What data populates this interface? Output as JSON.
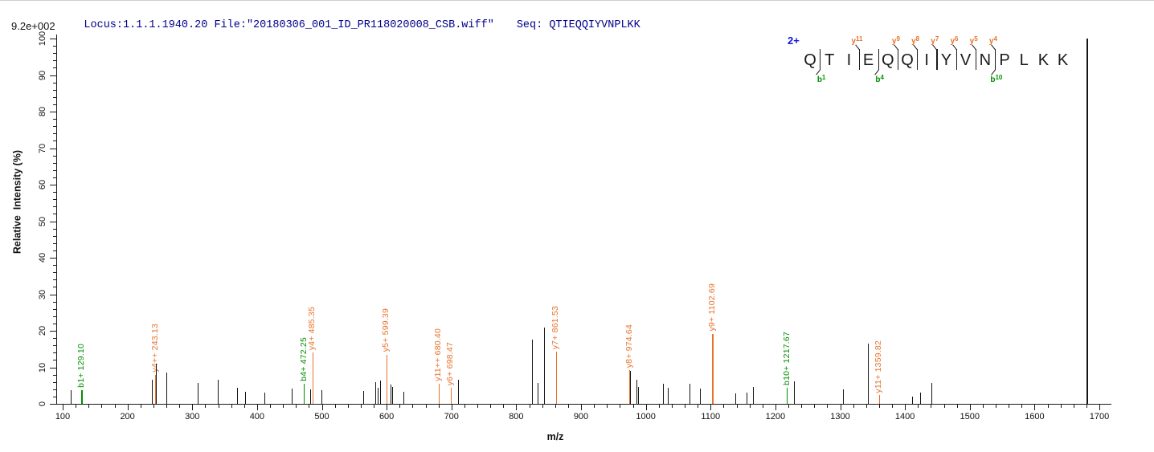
{
  "header": {
    "locus": "Locus:1.1.1.1940.20",
    "file": "File:\"20180306_001_ID_PR118020008_CSB.wiff\"",
    "seq_label": "Seq: ",
    "sequence": "QTIEQQIYVNPLKK",
    "text_color": "#00008B"
  },
  "intensity_scale_label": "9.2e+002",
  "peptide_annotation": {
    "charge_label": "2+",
    "charge_color": "#1414E6",
    "residues": [
      "Q",
      "T",
      "I",
      "E",
      "Q",
      "Q",
      "I",
      "Y",
      "V",
      "N",
      "P",
      "L",
      "K",
      "K"
    ],
    "cuts": [
      {
        "gap": 1,
        "b": "b1"
      },
      {
        "gap": 3,
        "y": "y11"
      },
      {
        "gap": 4,
        "b": "b4"
      },
      {
        "gap": 5,
        "y": "y9"
      },
      {
        "gap": 6,
        "y": "y8"
      },
      {
        "gap": 7,
        "y": "y7"
      },
      {
        "gap": 8,
        "y": "y6"
      },
      {
        "gap": 9,
        "y": "y5"
      },
      {
        "gap": 10,
        "y": "y4",
        "b": "b10"
      }
    ]
  },
  "chart_data": {
    "type": "bar",
    "subtype": "ms2-centroid-spectrum",
    "title": "Locus:1.1.1.1940.20 File:\"20180306_001_ID_PR118020008_CSB.wiff\" Seq: QTIEQQIYVNPLKK",
    "xlabel": "m/z",
    "ylabel": "Relative  Intensity (%)",
    "intensity_scale_label": "9.2e+002",
    "xlim": [
      90,
      1717
    ],
    "ylim": [
      0,
      100
    ],
    "grid": false,
    "legend": false,
    "x_axis": {
      "min": 100,
      "max": 1700,
      "major_step": 100,
      "minor_step": 20
    },
    "y_axis": {
      "min": 0,
      "max": 100,
      "major_step": 10,
      "minor_step": 2
    },
    "colors": {
      "black": "#141414",
      "orange": "#E8722C",
      "green": "#009000"
    },
    "peaks": [
      {
        "mz": 112.4,
        "intensity": 3.7,
        "color": "black"
      },
      {
        "mz": 129.1,
        "intensity": 3.8,
        "color": "green",
        "label": "b1+ 129.10"
      },
      {
        "mz": 238.0,
        "intensity": 6.5,
        "color": "black"
      },
      {
        "mz": 243.13,
        "intensity": 8.0,
        "color": "orange",
        "label": "y4++ 243.13"
      },
      {
        "mz": 244.2,
        "intensity": 11.0,
        "color": "black"
      },
      {
        "mz": 260.0,
        "intensity": 8.6,
        "color": "black"
      },
      {
        "mz": 308.4,
        "intensity": 5.7,
        "color": "black"
      },
      {
        "mz": 339.4,
        "intensity": 6.6,
        "color": "black"
      },
      {
        "mz": 369.1,
        "intensity": 4.4,
        "color": "black"
      },
      {
        "mz": 381.5,
        "intensity": 3.3,
        "color": "black"
      },
      {
        "mz": 411.3,
        "intensity": 3.0,
        "color": "black"
      },
      {
        "mz": 453.5,
        "intensity": 4.2,
        "color": "black"
      },
      {
        "mz": 472.25,
        "intensity": 5.5,
        "color": "green",
        "label": "b4+ 472.25"
      },
      {
        "mz": 482.0,
        "intensity": 4.0,
        "color": "black"
      },
      {
        "mz": 485.35,
        "intensity": 14.0,
        "color": "orange",
        "label": "y4+ 485.35"
      },
      {
        "mz": 499.4,
        "intensity": 3.7,
        "color": "black"
      },
      {
        "mz": 563.9,
        "intensity": 3.5,
        "color": "black"
      },
      {
        "mz": 582.5,
        "intensity": 6.0,
        "color": "black"
      },
      {
        "mz": 586.2,
        "intensity": 4.3,
        "color": "black"
      },
      {
        "mz": 589.9,
        "intensity": 6.4,
        "color": "black"
      },
      {
        "mz": 599.39,
        "intensity": 13.5,
        "color": "orange",
        "label": "y5+ 599.39"
      },
      {
        "mz": 606.1,
        "intensity": 5.2,
        "color": "black"
      },
      {
        "mz": 608.5,
        "intensity": 4.6,
        "color": "black"
      },
      {
        "mz": 625.9,
        "intensity": 3.4,
        "color": "black"
      },
      {
        "mz": 680.4,
        "intensity": 5.5,
        "color": "orange",
        "label": "y11++ 680.40"
      },
      {
        "mz": 698.47,
        "intensity": 4.3,
        "color": "orange",
        "label": "y6+ 698.47"
      },
      {
        "mz": 710.2,
        "intensity": 6.6,
        "color": "black"
      },
      {
        "mz": 824.4,
        "intensity": 17.5,
        "color": "black"
      },
      {
        "mz": 833.0,
        "intensity": 5.8,
        "color": "black"
      },
      {
        "mz": 843.0,
        "intensity": 20.8,
        "color": "black"
      },
      {
        "mz": 861.53,
        "intensity": 14.2,
        "color": "orange",
        "label": "y7+ 861.53"
      },
      {
        "mz": 974.64,
        "intensity": 9.2,
        "color": "orange",
        "label": "y8+ 974.64"
      },
      {
        "mz": 976.0,
        "intensity": 9.0,
        "color": "black"
      },
      {
        "mz": 985.6,
        "intensity": 6.6,
        "color": "black"
      },
      {
        "mz": 988.1,
        "intensity": 4.6,
        "color": "black"
      },
      {
        "mz": 1026.5,
        "intensity": 5.5,
        "color": "black"
      },
      {
        "mz": 1033.9,
        "intensity": 4.4,
        "color": "black"
      },
      {
        "mz": 1067.8,
        "intensity": 5.5,
        "color": "black"
      },
      {
        "mz": 1083.6,
        "intensity": 4.2,
        "color": "black"
      },
      {
        "mz": 1102.69,
        "intensity": 19.2,
        "color": "orange",
        "label": "y9+ 1102.69"
      },
      {
        "mz": 1138.2,
        "intensity": 2.9,
        "color": "black"
      },
      {
        "mz": 1155.5,
        "intensity": 3.1,
        "color": "black"
      },
      {
        "mz": 1165.5,
        "intensity": 4.6,
        "color": "black"
      },
      {
        "mz": 1217.67,
        "intensity": 4.4,
        "color": "green",
        "label": "b10+ 1217.67"
      },
      {
        "mz": 1228.7,
        "intensity": 6.2,
        "color": "black"
      },
      {
        "mz": 1304.4,
        "intensity": 4.0,
        "color": "black"
      },
      {
        "mz": 1342.9,
        "intensity": 16.5,
        "color": "black"
      },
      {
        "mz": 1359.82,
        "intensity": 2.4,
        "color": "orange",
        "label": "y11+ 1359.82"
      },
      {
        "mz": 1411.1,
        "intensity": 2.0,
        "color": "black"
      },
      {
        "mz": 1423.5,
        "intensity": 3.1,
        "color": "black"
      },
      {
        "mz": 1440.9,
        "intensity": 5.8,
        "color": "black"
      },
      {
        "mz": 1680.2,
        "intensity": 100,
        "color": "black"
      }
    ]
  }
}
